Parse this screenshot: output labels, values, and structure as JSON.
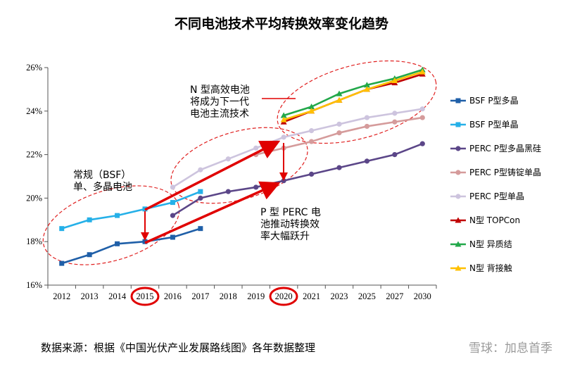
{
  "page": {
    "title": "不同电池技术平均转换效率变化趋势",
    "source": "数据来源：根据《中国光伏产业发展路线图》各年数据整理",
    "watermark": "雪球：加息首季"
  },
  "annotations": {
    "n_type": [
      "N 型高效电池",
      "将成为下一代",
      "电池主流技术"
    ],
    "bsf": [
      "常规（BSF）",
      "单、多晶电池"
    ],
    "perc": [
      "P 型 PERC 电",
      "池推动转换效",
      "率大幅跃升"
    ]
  },
  "chart_data": {
    "type": "line",
    "title": "不同电池技术平均转换效率变化趋势",
    "categories": [
      "2012",
      "2013",
      "2014",
      "2015",
      "2016",
      "2017",
      "2018",
      "2019",
      "2020",
      "2021",
      "2023",
      "2025",
      "2027",
      "2030"
    ],
    "ylim": [
      16,
      26
    ],
    "yticks": [
      "16%",
      "18%",
      "20%",
      "22%",
      "24%",
      "26%"
    ],
    "grid": false,
    "legend_position": "right",
    "highlighted_categories": [
      "2015",
      "2020"
    ],
    "series": [
      {
        "name": "BSF P型多晶",
        "color": "#1f5fa8",
        "marker": "square",
        "values": [
          17.0,
          17.4,
          17.9,
          18.0,
          18.2,
          18.6,
          null,
          null,
          null,
          null,
          null,
          null,
          null,
          null
        ]
      },
      {
        "name": "BSF P型单晶",
        "color": "#25b0e8",
        "marker": "square",
        "values": [
          18.6,
          19.0,
          19.2,
          19.5,
          19.8,
          20.3,
          null,
          null,
          null,
          null,
          null,
          null,
          null,
          null
        ]
      },
      {
        "name": "PERC P型多晶黑硅",
        "color": "#5b4688",
        "marker": "circle",
        "values": [
          null,
          null,
          null,
          null,
          19.2,
          20.0,
          20.3,
          20.5,
          20.8,
          21.1,
          21.4,
          21.7,
          22.0,
          22.5
        ]
      },
      {
        "name": "PERC P型铸锭单晶",
        "color": "#d59b9b",
        "marker": "circle",
        "values": [
          null,
          null,
          null,
          null,
          null,
          null,
          null,
          22.0,
          22.3,
          22.6,
          23.0,
          23.3,
          23.5,
          23.7
        ]
      },
      {
        "name": "PERC P型单晶",
        "color": "#cdc4de",
        "marker": "circle",
        "values": [
          null,
          null,
          null,
          null,
          20.5,
          21.3,
          21.8,
          22.3,
          22.8,
          23.1,
          23.4,
          23.7,
          23.9,
          24.1
        ]
      },
      {
        "name": "N型 TOPCon",
        "color": "#c00000",
        "marker": "triangle",
        "values": [
          null,
          null,
          null,
          null,
          null,
          null,
          null,
          null,
          23.5,
          24.0,
          24.5,
          25.0,
          25.3,
          25.7
        ]
      },
      {
        "name": "N型 异质结",
        "color": "#22a84a",
        "marker": "triangle",
        "values": [
          null,
          null,
          null,
          null,
          null,
          null,
          null,
          null,
          23.8,
          24.2,
          24.8,
          25.2,
          25.5,
          25.9
        ]
      },
      {
        "name": "N型 背接触",
        "color": "#ffc000",
        "marker": "triangle",
        "values": [
          null,
          null,
          null,
          null,
          null,
          null,
          null,
          null,
          23.6,
          24.0,
          24.5,
          25.0,
          25.4,
          25.8
        ]
      }
    ]
  }
}
